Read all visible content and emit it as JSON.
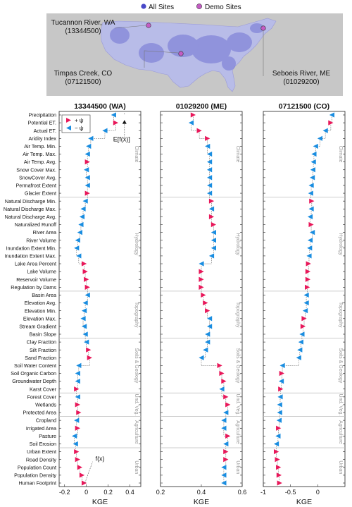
{
  "map": {
    "legend": [
      {
        "label": "All Sites",
        "color": "#4848c8"
      },
      {
        "label": "Demo Sites",
        "color": "#c45cc4"
      }
    ],
    "callouts": [
      {
        "name": "Tucannon River, WA",
        "id": "(13344500)"
      },
      {
        "name": "Timpas Creek, CO",
        "id": "(07121500)"
      },
      {
        "name": "Seboeis River, ME",
        "id": "(01029200)"
      }
    ]
  },
  "chart_data": {
    "type": "scatter",
    "colors": {
      "pos": "#e8185a",
      "neg": "#1a8de0"
    },
    "features": [
      "Precipitation",
      "Potential ET.",
      "Actual ET.",
      "Aridity Index",
      "Air Temp. Min.",
      "Air Temp. Max.",
      "Air Temp. Avg.",
      "Snow Cover Max.",
      "SnowCover Avg.",
      "Permafrost Extent",
      "Glacier Extent",
      "Natural Discharge Min.",
      "Natural Discharge Max.",
      "Natural Discharge Avg.",
      "Naturalized Runoff",
      "River Area",
      "River Volume",
      "Inundation Extent Min.",
      "Inundation Extent Max.",
      "Lake Area Percent",
      "Lake Volume",
      "Reservoir Volume",
      "Regulation by Dams",
      "Basin Area",
      "Elevation Avg.",
      "Elevation Min.",
      "Elevation Max.",
      "Stream Gradient",
      "Basin Slope",
      "Clay Fraction",
      "Silt Fraction",
      "Sand Fraction",
      "Soil Water Content",
      "Soil Organic Carbon",
      "Groundwater Depth",
      "Karst Cover",
      "Forest Cover",
      "Wetlands",
      "Protected Area",
      "Cropland",
      "Irrigated Area",
      "Pasture",
      "Soil Erosion",
      "Urban Extent",
      "Road Density",
      "Population Count",
      "Population Density",
      "Human Footprint"
    ],
    "groups": [
      {
        "label": "Climate",
        "start": 0,
        "end": 10
      },
      {
        "label": "Hydrology",
        "start": 11,
        "end": 22
      },
      {
        "label": "Topography",
        "start": 23,
        "end": 28
      },
      {
        "label": "Soils & Geology",
        "start": 29,
        "end": 35
      },
      {
        "label": "Und. Veg.",
        "start": 36,
        "end": 38
      },
      {
        "label": "Agriculture",
        "start": 39,
        "end": 42
      },
      {
        "label": "Urban",
        "start": 43,
        "end": 47
      }
    ],
    "legend": {
      "pos": "+ ψ",
      "neg": "− ψ"
    },
    "xlabel": "KGE",
    "panels": [
      {
        "title": "13344500 (WA)",
        "xlim": [
          -0.25,
          0.5
        ],
        "xticks": [
          -0.2,
          0,
          0.2,
          0.4
        ],
        "xtick_labels": [
          "-0.2",
          "0",
          "0.2",
          "0.4"
        ],
        "values": [
          0.25,
          0.27,
          0.17,
          0.04,
          0.02,
          0.01,
          0.01,
          0.0,
          0.01,
          0.01,
          0.01,
          -0.01,
          -0.03,
          -0.04,
          -0.05,
          -0.06,
          -0.08,
          -0.09,
          -0.07,
          -0.02,
          -0.01,
          0.0,
          0.01,
          0.01,
          -0.01,
          -0.02,
          -0.03,
          -0.02,
          -0.01,
          0.0,
          0.02,
          0.03,
          -0.07,
          -0.08,
          -0.08,
          -0.09,
          -0.08,
          -0.08,
          -0.07,
          -0.09,
          -0.08,
          -0.11,
          -0.1,
          -0.09,
          -0.08,
          -0.06,
          -0.04,
          -0.02
        ],
        "signs": [
          "neg",
          "pos",
          "neg",
          "neg",
          "neg",
          "neg",
          "pos",
          "neg",
          "neg",
          "neg",
          "pos",
          "neg",
          "neg",
          "neg",
          "neg",
          "neg",
          "neg",
          "neg",
          "neg",
          "pos",
          "pos",
          "pos",
          "pos",
          "neg",
          "neg",
          "neg",
          "neg",
          "neg",
          "neg",
          "neg",
          "pos",
          "pos",
          "neg",
          "neg",
          "neg",
          "pos",
          "neg",
          "pos",
          "pos",
          "neg",
          "pos",
          "neg",
          "neg",
          "pos",
          "pos",
          "pos",
          "pos",
          "pos"
        ],
        "top_marker": {
          "value": 0.35,
          "label": "E[f(x)]"
        },
        "end_label": "f(x)"
      },
      {
        "title": "01029200 (ME)",
        "xlim": [
          0.2,
          0.6
        ],
        "xticks": [
          0.2,
          0.4,
          0.6
        ],
        "xtick_labels": [
          "0.2",
          "0.4",
          "0.6"
        ],
        "values": [
          0.36,
          0.35,
          0.39,
          0.43,
          0.43,
          0.44,
          0.44,
          0.44,
          0.44,
          0.44,
          0.44,
          0.45,
          0.45,
          0.45,
          0.46,
          0.46,
          0.46,
          0.46,
          0.45,
          0.4,
          0.4,
          0.4,
          0.4,
          0.41,
          0.42,
          0.43,
          0.44,
          0.44,
          0.43,
          0.43,
          0.42,
          0.4,
          0.49,
          0.5,
          0.51,
          0.5,
          0.52,
          0.53,
          0.52,
          0.51,
          0.51,
          0.53,
          0.52,
          0.52,
          0.52,
          0.51,
          0.51,
          0.51
        ],
        "signs": [
          "pos",
          "neg",
          "pos",
          "pos",
          "neg",
          "neg",
          "neg",
          "neg",
          "neg",
          "neg",
          "neg",
          "pos",
          "neg",
          "pos",
          "pos",
          "neg",
          "neg",
          "neg",
          "neg",
          "neg",
          "pos",
          "pos",
          "pos",
          "pos",
          "pos",
          "pos",
          "neg",
          "neg",
          "neg",
          "neg",
          "neg",
          "neg",
          "pos",
          "pos",
          "pos",
          "neg",
          "pos",
          "pos",
          "neg",
          "neg",
          "neg",
          "pos",
          "neg",
          "pos",
          "pos",
          "neg",
          "neg",
          "neg"
        ],
        "top_marker": null,
        "end_label": ""
      },
      {
        "title": "07121500 (CO)",
        "xlim": [
          -1.0,
          0.5
        ],
        "xticks": [
          -1,
          -0.5,
          0
        ],
        "xtick_labels": [
          "-1",
          "-0.5",
          "0"
        ],
        "values": [
          0.26,
          0.24,
          0.14,
          0.04,
          -0.04,
          -0.07,
          -0.08,
          -0.09,
          -0.1,
          -0.12,
          -0.13,
          -0.11,
          -0.12,
          -0.14,
          -0.12,
          -0.1,
          -0.14,
          -0.15,
          -0.16,
          -0.17,
          -0.18,
          -0.18,
          -0.19,
          -0.21,
          -0.21,
          -0.23,
          -0.25,
          -0.27,
          -0.29,
          -0.31,
          -0.33,
          -0.35,
          -0.65,
          -0.66,
          -0.67,
          -0.68,
          -0.69,
          -0.7,
          -0.7,
          -0.71,
          -0.72,
          -0.73,
          -0.76,
          -0.76,
          -0.74,
          -0.72,
          -0.71,
          -0.7
        ],
        "signs": [
          "neg",
          "pos",
          "neg",
          "neg",
          "neg",
          "neg",
          "neg",
          "neg",
          "neg",
          "neg",
          "neg",
          "pos",
          "neg",
          "neg",
          "pos",
          "neg",
          "neg",
          "neg",
          "neg",
          "pos",
          "pos",
          "pos",
          "pos",
          "neg",
          "neg",
          "neg",
          "pos",
          "pos",
          "neg",
          "neg",
          "neg",
          "neg",
          "neg",
          "pos",
          "neg",
          "pos",
          "neg",
          "neg",
          "neg",
          "neg",
          "pos",
          "neg",
          "neg",
          "pos",
          "pos",
          "pos",
          "pos",
          "pos"
        ],
        "top_marker": null,
        "end_label": ""
      }
    ]
  }
}
